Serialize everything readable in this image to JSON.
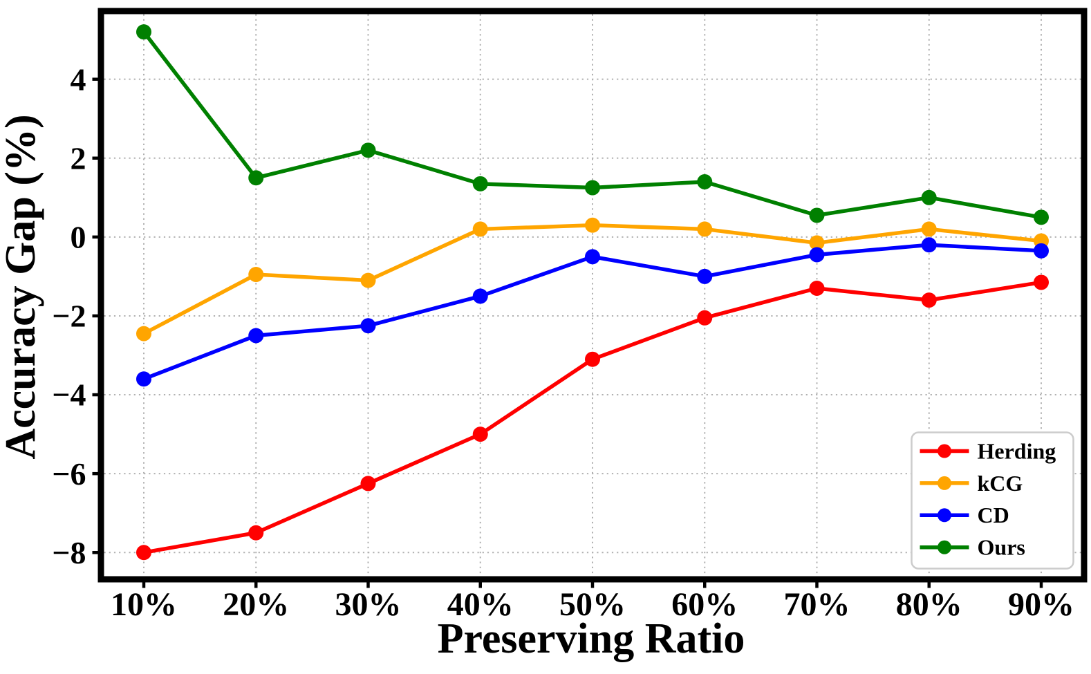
{
  "figure": {
    "background_color": "#ffffff",
    "frame_color": "#000000",
    "grid_color": "#b0b0b0",
    "text_color": "#000000",
    "legend_border_color": "#cccccc"
  },
  "chart_data": {
    "type": "line",
    "title": "",
    "xlabel": "Preserving Ratio",
    "ylabel": "Accuracy Gap (%)",
    "categories": [
      "10%",
      "20%",
      "30%",
      "40%",
      "50%",
      "60%",
      "70%",
      "80%",
      "90%"
    ],
    "x_values": [
      10,
      20,
      30,
      40,
      50,
      60,
      70,
      80,
      90
    ],
    "y_tick_values": [
      4,
      2,
      0,
      -2,
      -4,
      -6,
      -8
    ],
    "y_tick_labels": [
      "4",
      "2",
      "0",
      "−2",
      "−4",
      "−6",
      "−8"
    ],
    "ylim": [
      -8.6,
      5.65
    ],
    "grid": "dotted",
    "legend_position": "lower right",
    "legend": [
      "Herding",
      "kCG",
      "CD",
      "Ours"
    ],
    "series": [
      {
        "name": "Herding",
        "color": "#ff0000",
        "values": [
          -8.0,
          -7.5,
          -6.25,
          -5.0,
          -3.1,
          -2.05,
          -1.3,
          -1.6,
          -1.15
        ]
      },
      {
        "name": "kCG",
        "color": "#ffa500",
        "values": [
          -2.45,
          -0.95,
          -1.1,
          0.2,
          0.3,
          0.2,
          -0.15,
          0.2,
          -0.1
        ]
      },
      {
        "name": "CD",
        "color": "#0000ff",
        "values": [
          -3.6,
          -2.5,
          -2.25,
          -1.5,
          -0.5,
          -1.0,
          -0.45,
          -0.2,
          -0.35
        ]
      },
      {
        "name": "Ours",
        "color": "#008000",
        "values": [
          5.2,
          1.5,
          2.2,
          1.35,
          1.25,
          1.4,
          0.55,
          1.0,
          0.5
        ]
      }
    ]
  }
}
